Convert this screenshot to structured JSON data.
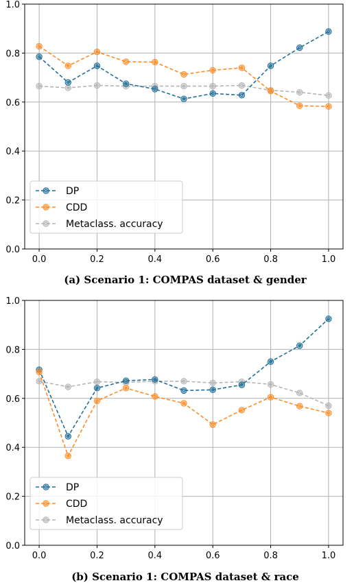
{
  "chart_data": [
    {
      "type": "line",
      "caption": "(a) Scenario 1: COMPAS dataset & gender",
      "x": [
        0.0,
        0.1,
        0.2,
        0.3,
        0.4,
        0.5,
        0.6,
        0.7,
        0.8,
        0.9,
        1.0
      ],
      "series": [
        {
          "name": "DP",
          "color": "#1f6f9a",
          "values": [
            0.785,
            0.68,
            0.748,
            0.675,
            0.653,
            0.613,
            0.635,
            0.628,
            0.748,
            0.822,
            0.888
          ]
        },
        {
          "name": "CDD",
          "color": "#ff8c26",
          "values": [
            0.828,
            0.748,
            0.805,
            0.765,
            0.763,
            0.713,
            0.73,
            0.74,
            0.645,
            0.585,
            0.582
          ]
        },
        {
          "name": "Metaclass. accuracy",
          "color": "#b5b5b5",
          "values": [
            0.665,
            0.658,
            0.668,
            0.665,
            0.665,
            0.665,
            0.665,
            0.668,
            0.648,
            0.64,
            0.627
          ]
        }
      ],
      "xticks": [
        "0.0",
        "0.2",
        "0.4",
        "0.6",
        "0.8",
        "1.0"
      ],
      "yticks": [
        "0.0",
        "0.2",
        "0.4",
        "0.6",
        "0.8",
        "1.0"
      ],
      "xlim": [
        -0.05,
        1.05
      ],
      "ylim": [
        0.0,
        1.0
      ],
      "grid": true,
      "legend": "lower-left"
    },
    {
      "type": "line",
      "caption": "(b) Scenario 1: COMPAS dataset & race",
      "x": [
        0.0,
        0.1,
        0.2,
        0.3,
        0.4,
        0.5,
        0.6,
        0.7,
        0.8,
        0.9,
        1.0
      ],
      "series": [
        {
          "name": "DP",
          "color": "#1f6f9a",
          "values": [
            0.717,
            0.445,
            0.642,
            0.672,
            0.677,
            0.632,
            0.635,
            0.655,
            0.75,
            0.815,
            0.925
          ]
        },
        {
          "name": "CDD",
          "color": "#ff8c26",
          "values": [
            0.708,
            0.365,
            0.59,
            0.642,
            0.608,
            0.58,
            0.493,
            0.552,
            0.605,
            0.568,
            0.54
          ]
        },
        {
          "name": "Metaclass. accuracy",
          "color": "#b5b5b5",
          "values": [
            0.67,
            0.647,
            0.668,
            0.665,
            0.67,
            0.67,
            0.663,
            0.668,
            0.657,
            0.622,
            0.57
          ]
        }
      ],
      "xticks": [
        "0.0",
        "0.2",
        "0.4",
        "0.6",
        "0.8",
        "1.0"
      ],
      "yticks": [
        "0.0",
        "0.2",
        "0.4",
        "0.6",
        "0.8",
        "1.0"
      ],
      "xlim": [
        -0.05,
        1.05
      ],
      "ylim": [
        0.0,
        1.0
      ],
      "grid": true,
      "legend": "lower-left"
    }
  ]
}
